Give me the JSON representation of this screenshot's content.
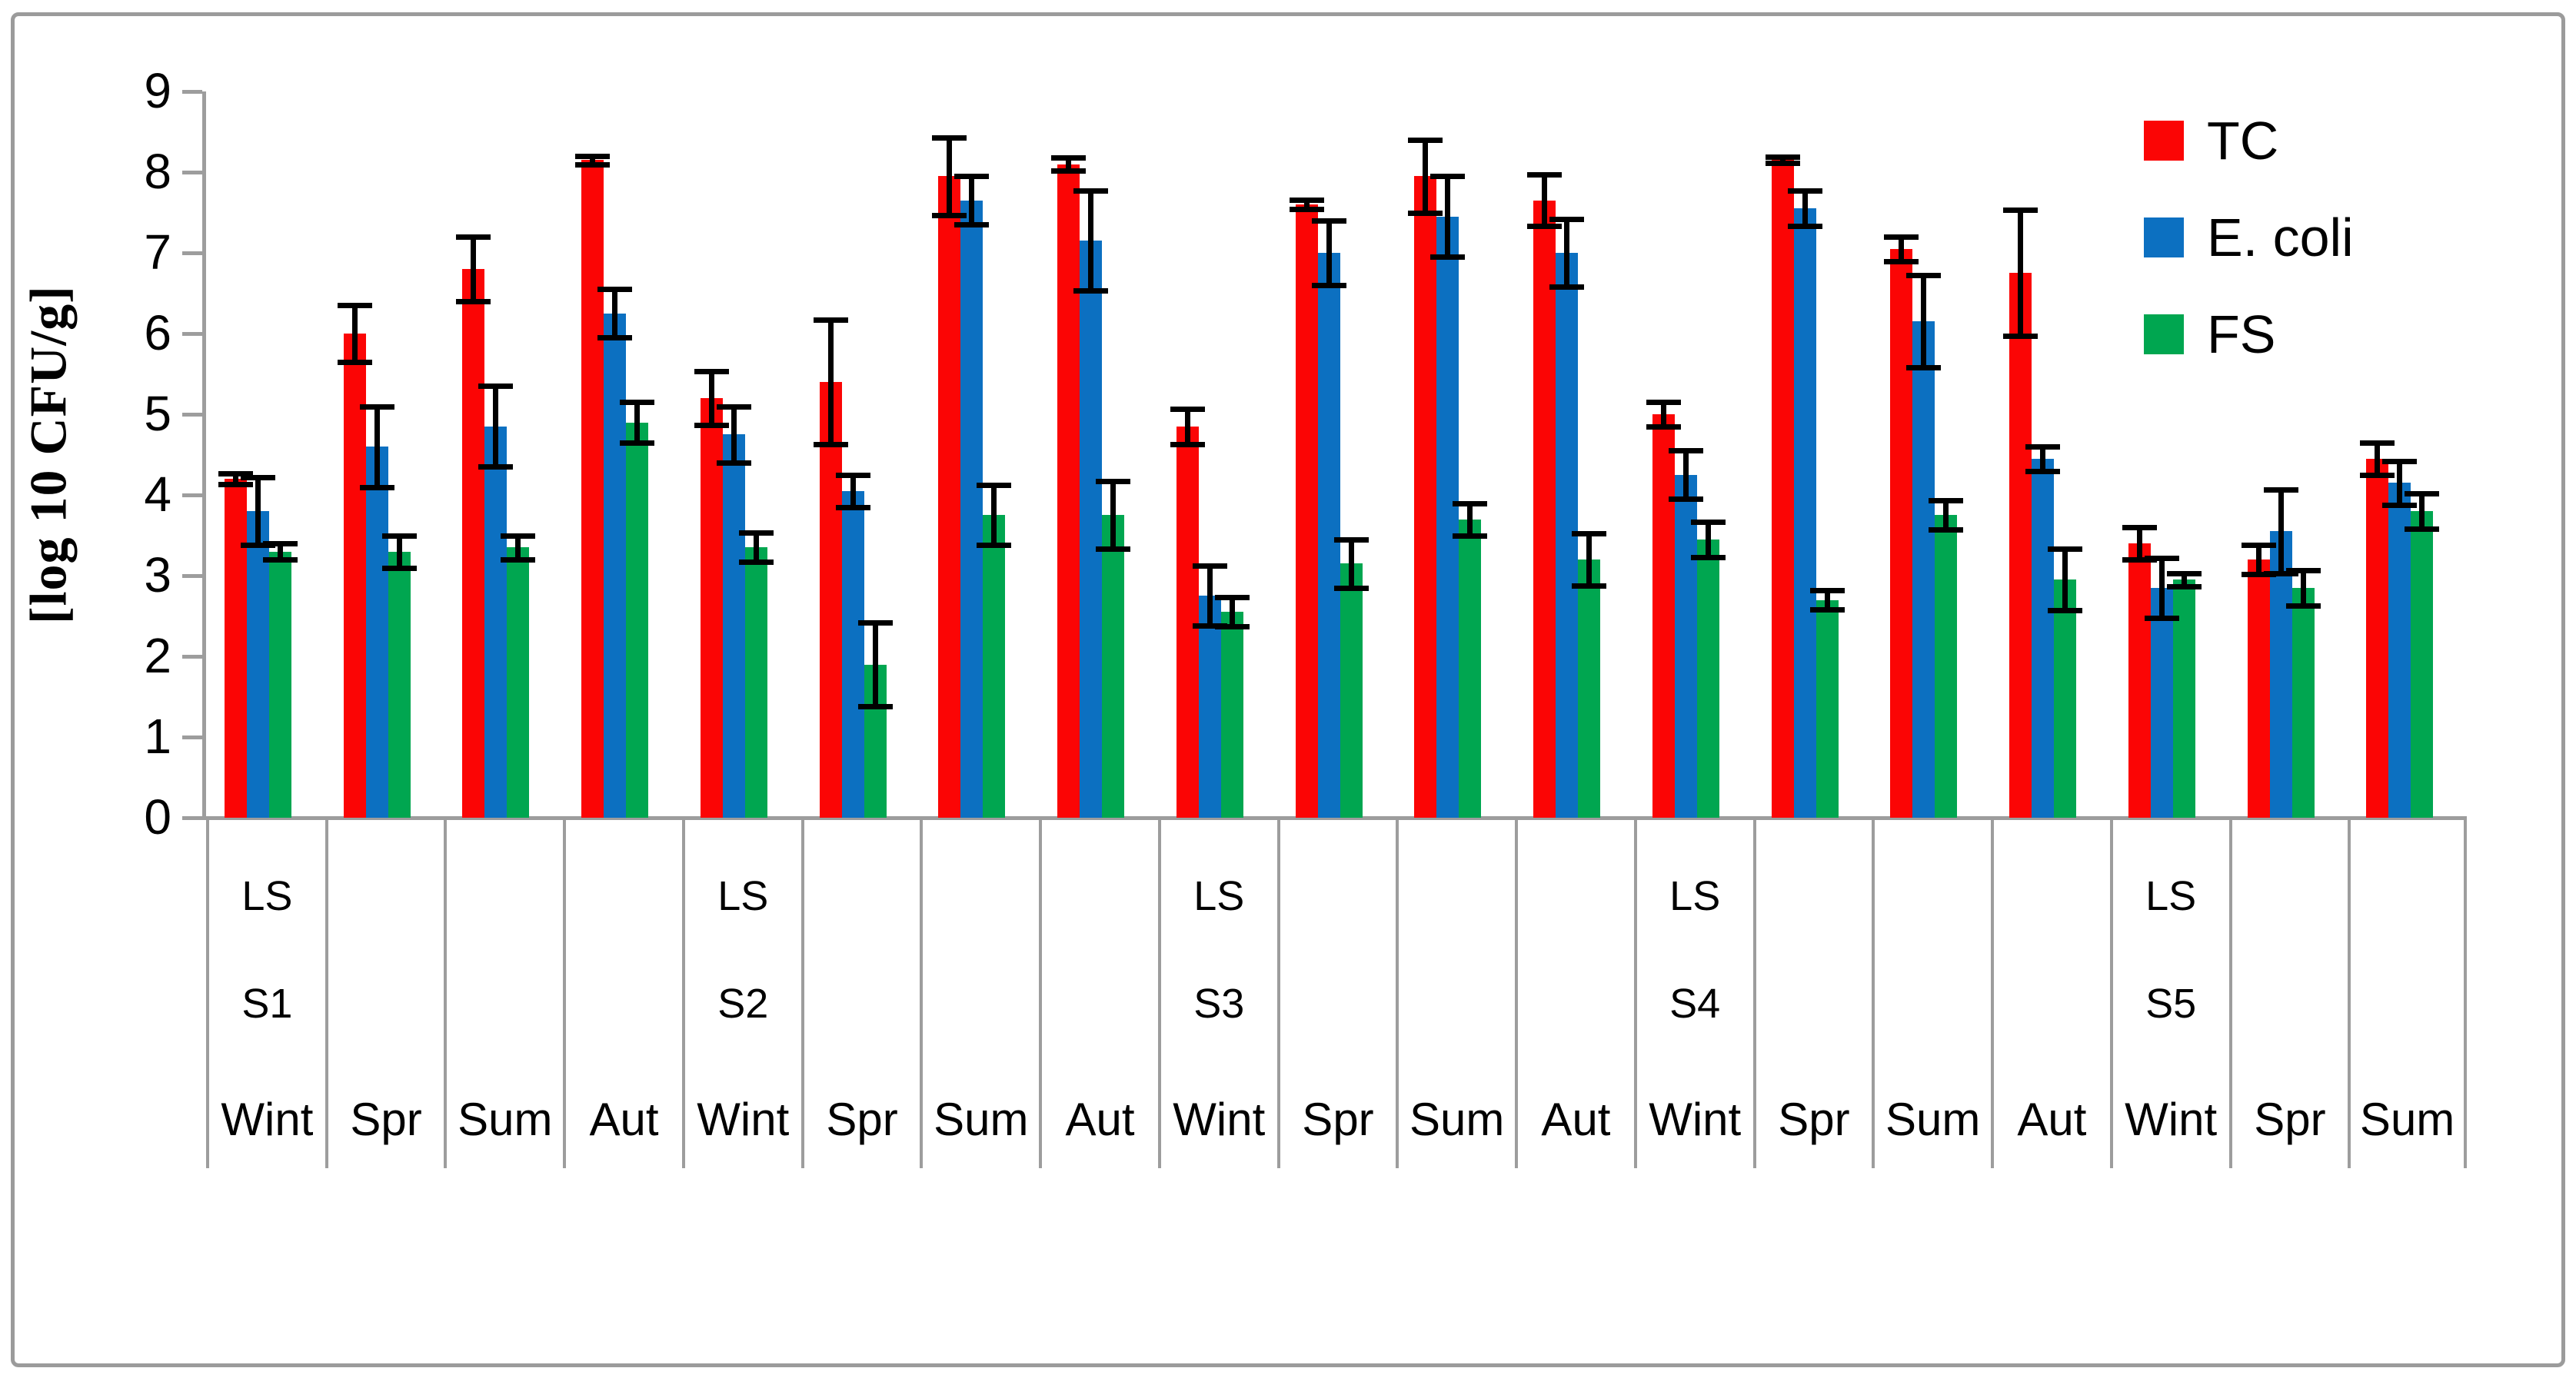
{
  "figure": {
    "background": "#FFFFFF",
    "border_color": "#9B9B9B",
    "axis_color": "#9D9D9D",
    "text_color": "#000000"
  },
  "chart_data": {
    "type": "bar",
    "title": "",
    "ylabel": "[log 10 CFU/g]",
    "xlabel": "",
    "ylim": [
      0,
      9
    ],
    "yticks": [
      0,
      1,
      2,
      3,
      4,
      5,
      6,
      7,
      8,
      9
    ],
    "grid": false,
    "error_bars": true,
    "legend_position": "top-right",
    "legend": [
      "TC",
      "E. coli",
      "FS"
    ],
    "categories": [
      {
        "season": "Wint",
        "group_label": "LS",
        "site": "S1"
      },
      {
        "season": "Spr"
      },
      {
        "season": "Sum"
      },
      {
        "season": "Aut"
      },
      {
        "season": "Wint",
        "group_label": "LS",
        "site": "S2"
      },
      {
        "season": "Spr"
      },
      {
        "season": "Sum"
      },
      {
        "season": "Aut"
      },
      {
        "season": "Wint",
        "group_label": "LS",
        "site": "S3"
      },
      {
        "season": "Spr"
      },
      {
        "season": "Sum"
      },
      {
        "season": "Aut"
      },
      {
        "season": "Wint",
        "group_label": "LS",
        "site": "S4"
      },
      {
        "season": "Spr"
      },
      {
        "season": "Sum"
      },
      {
        "season": "Aut"
      },
      {
        "season": "Wint",
        "group_label": "LS",
        "site": "S5"
      },
      {
        "season": "Spr"
      },
      {
        "season": "Sum"
      }
    ],
    "series": [
      {
        "name": "TC",
        "color": "#FB0505",
        "values": [
          4.2,
          6.0,
          6.8,
          8.15,
          5.2,
          5.4,
          7.95,
          8.1,
          4.85,
          7.6,
          7.95,
          7.65,
          5.0,
          8.15,
          7.05,
          6.75,
          3.4,
          3.2,
          4.45
        ],
        "errors": [
          0.07,
          0.35,
          0.4,
          0.05,
          0.33,
          0.77,
          0.48,
          0.08,
          0.22,
          0.06,
          0.45,
          0.32,
          0.15,
          0.04,
          0.15,
          0.78,
          0.2,
          0.18,
          0.2
        ]
      },
      {
        "name": "E. coli",
        "color": "#0C70C1",
        "values": [
          3.8,
          4.6,
          4.85,
          6.25,
          4.75,
          4.05,
          7.65,
          7.15,
          2.75,
          7.0,
          7.45,
          7.0,
          4.25,
          7.55,
          6.15,
          4.45,
          2.85,
          3.55,
          4.15
        ],
        "errors": [
          0.42,
          0.5,
          0.5,
          0.3,
          0.35,
          0.2,
          0.3,
          0.62,
          0.37,
          0.4,
          0.5,
          0.42,
          0.3,
          0.22,
          0.57,
          0.15,
          0.37,
          0.52,
          0.27
        ]
      },
      {
        "name": "FS",
        "color": "#00A650",
        "values": [
          3.3,
          3.3,
          3.35,
          4.9,
          3.35,
          1.9,
          3.75,
          3.75,
          2.55,
          3.15,
          3.7,
          3.2,
          3.45,
          2.7,
          3.75,
          2.95,
          2.95,
          2.85,
          3.8
        ],
        "errors": [
          0.1,
          0.2,
          0.15,
          0.25,
          0.18,
          0.52,
          0.37,
          0.42,
          0.18,
          0.3,
          0.2,
          0.32,
          0.22,
          0.12,
          0.18,
          0.38,
          0.08,
          0.22,
          0.22
        ]
      }
    ]
  }
}
